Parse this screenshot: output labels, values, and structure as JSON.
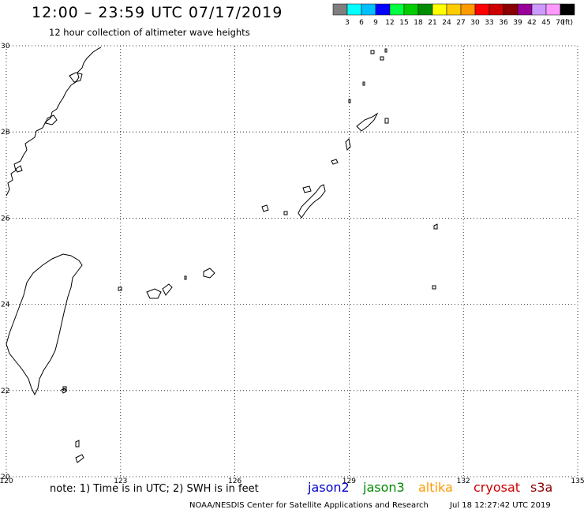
{
  "header": {
    "title": "12:00 – 23:59 UTC 07/17/2019",
    "subtitle": "12 hour collection of altimeter wave heights"
  },
  "legend": {
    "unit": "(ft)",
    "colors": [
      "#7f7f7f",
      "#00ffff",
      "#00bfff",
      "#0000ff",
      "#00ff40",
      "#00cc00",
      "#008c00",
      "#ffff00",
      "#ffcc00",
      "#ff9900",
      "#ff0000",
      "#cc0000",
      "#8b0000",
      "#990099",
      "#cc99ff",
      "#ff99ff",
      "#000000"
    ],
    "labels": [
      "3",
      "6",
      "9",
      "12",
      "15",
      "18",
      "21",
      "24",
      "27",
      "30",
      "33",
      "36",
      "39",
      "42",
      "45",
      "70"
    ]
  },
  "map": {
    "lon_range": [
      120,
      135
    ],
    "lat_range": [
      20,
      30
    ],
    "lon_ticks": [
      "120",
      "123",
      "126",
      "129",
      "132",
      "135"
    ],
    "lat_ticks": [
      "30",
      "28",
      "26",
      "24",
      "22",
      "20"
    ],
    "grid": true,
    "coast_color": "#000000",
    "features": [
      "taiwan",
      "china-coast",
      "ryukyu-islands",
      "amami-oshima",
      "okinawa",
      "miyako-islands",
      "yaeyama-islands",
      "daito-islands",
      "tokara-islands",
      "batanes-islands",
      "green-island",
      "orchid-island"
    ]
  },
  "footer": {
    "note": "note: 1) Time is in UTC; 2) SWH is in feet",
    "satellites": [
      {
        "name": "jason2",
        "color": "#0000cc"
      },
      {
        "name": "jason3",
        "color": "#008c00"
      },
      {
        "name": "altika",
        "color": "#ff9900"
      },
      {
        "name": "cryosat",
        "color": "#cc0000"
      },
      {
        "name": "s3a",
        "color": "#8b0000"
      }
    ],
    "credit": "NOAA/NESDIS Center for Satellite Applications and Research",
    "timestamp": "Jul 18 12:27:42 UTC 2019"
  }
}
